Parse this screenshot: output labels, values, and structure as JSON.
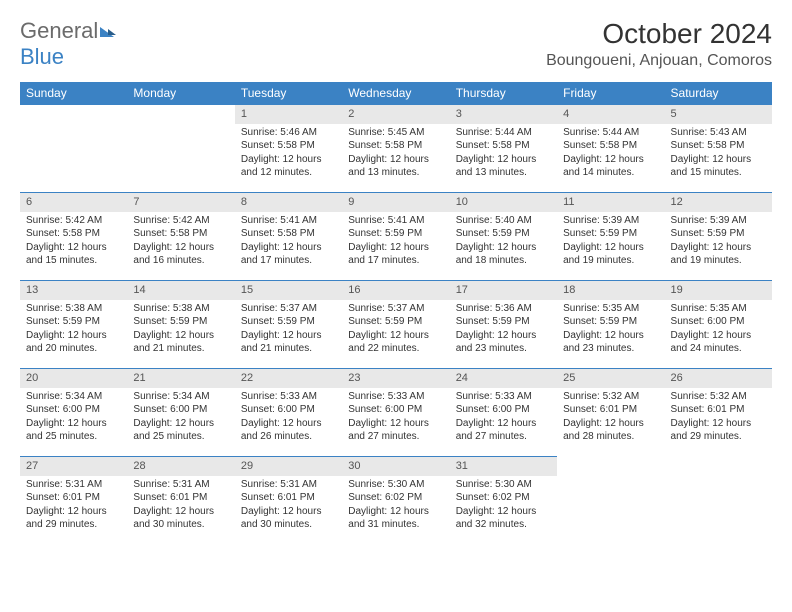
{
  "logo": {
    "general": "General",
    "blue": "Blue"
  },
  "title": "October 2024",
  "location": "Boungoueni, Anjouan, Comoros",
  "weekdays": [
    "Sunday",
    "Monday",
    "Tuesday",
    "Wednesday",
    "Thursday",
    "Friday",
    "Saturday"
  ],
  "colors": {
    "header_bg": "#3b82c4",
    "header_fg": "#ffffff",
    "daynum_bg": "#e8e8e8",
    "border": "#3b82c4",
    "logo_gray": "#6b6b6b",
    "logo_blue": "#3b82c4"
  },
  "first_weekday_index": 2,
  "days": [
    {
      "n": 1,
      "sunrise": "5:46 AM",
      "sunset": "5:58 PM",
      "daylight": "12 hours and 12 minutes."
    },
    {
      "n": 2,
      "sunrise": "5:45 AM",
      "sunset": "5:58 PM",
      "daylight": "12 hours and 13 minutes."
    },
    {
      "n": 3,
      "sunrise": "5:44 AM",
      "sunset": "5:58 PM",
      "daylight": "12 hours and 13 minutes."
    },
    {
      "n": 4,
      "sunrise": "5:44 AM",
      "sunset": "5:58 PM",
      "daylight": "12 hours and 14 minutes."
    },
    {
      "n": 5,
      "sunrise": "5:43 AM",
      "sunset": "5:58 PM",
      "daylight": "12 hours and 15 minutes."
    },
    {
      "n": 6,
      "sunrise": "5:42 AM",
      "sunset": "5:58 PM",
      "daylight": "12 hours and 15 minutes."
    },
    {
      "n": 7,
      "sunrise": "5:42 AM",
      "sunset": "5:58 PM",
      "daylight": "12 hours and 16 minutes."
    },
    {
      "n": 8,
      "sunrise": "5:41 AM",
      "sunset": "5:58 PM",
      "daylight": "12 hours and 17 minutes."
    },
    {
      "n": 9,
      "sunrise": "5:41 AM",
      "sunset": "5:59 PM",
      "daylight": "12 hours and 17 minutes."
    },
    {
      "n": 10,
      "sunrise": "5:40 AM",
      "sunset": "5:59 PM",
      "daylight": "12 hours and 18 minutes."
    },
    {
      "n": 11,
      "sunrise": "5:39 AM",
      "sunset": "5:59 PM",
      "daylight": "12 hours and 19 minutes."
    },
    {
      "n": 12,
      "sunrise": "5:39 AM",
      "sunset": "5:59 PM",
      "daylight": "12 hours and 19 minutes."
    },
    {
      "n": 13,
      "sunrise": "5:38 AM",
      "sunset": "5:59 PM",
      "daylight": "12 hours and 20 minutes."
    },
    {
      "n": 14,
      "sunrise": "5:38 AM",
      "sunset": "5:59 PM",
      "daylight": "12 hours and 21 minutes."
    },
    {
      "n": 15,
      "sunrise": "5:37 AM",
      "sunset": "5:59 PM",
      "daylight": "12 hours and 21 minutes."
    },
    {
      "n": 16,
      "sunrise": "5:37 AM",
      "sunset": "5:59 PM",
      "daylight": "12 hours and 22 minutes."
    },
    {
      "n": 17,
      "sunrise": "5:36 AM",
      "sunset": "5:59 PM",
      "daylight": "12 hours and 23 minutes."
    },
    {
      "n": 18,
      "sunrise": "5:35 AM",
      "sunset": "5:59 PM",
      "daylight": "12 hours and 23 minutes."
    },
    {
      "n": 19,
      "sunrise": "5:35 AM",
      "sunset": "6:00 PM",
      "daylight": "12 hours and 24 minutes."
    },
    {
      "n": 20,
      "sunrise": "5:34 AM",
      "sunset": "6:00 PM",
      "daylight": "12 hours and 25 minutes."
    },
    {
      "n": 21,
      "sunrise": "5:34 AM",
      "sunset": "6:00 PM",
      "daylight": "12 hours and 25 minutes."
    },
    {
      "n": 22,
      "sunrise": "5:33 AM",
      "sunset": "6:00 PM",
      "daylight": "12 hours and 26 minutes."
    },
    {
      "n": 23,
      "sunrise": "5:33 AM",
      "sunset": "6:00 PM",
      "daylight": "12 hours and 27 minutes."
    },
    {
      "n": 24,
      "sunrise": "5:33 AM",
      "sunset": "6:00 PM",
      "daylight": "12 hours and 27 minutes."
    },
    {
      "n": 25,
      "sunrise": "5:32 AM",
      "sunset": "6:01 PM",
      "daylight": "12 hours and 28 minutes."
    },
    {
      "n": 26,
      "sunrise": "5:32 AM",
      "sunset": "6:01 PM",
      "daylight": "12 hours and 29 minutes."
    },
    {
      "n": 27,
      "sunrise": "5:31 AM",
      "sunset": "6:01 PM",
      "daylight": "12 hours and 29 minutes."
    },
    {
      "n": 28,
      "sunrise": "5:31 AM",
      "sunset": "6:01 PM",
      "daylight": "12 hours and 30 minutes."
    },
    {
      "n": 29,
      "sunrise": "5:31 AM",
      "sunset": "6:01 PM",
      "daylight": "12 hours and 30 minutes."
    },
    {
      "n": 30,
      "sunrise": "5:30 AM",
      "sunset": "6:02 PM",
      "daylight": "12 hours and 31 minutes."
    },
    {
      "n": 31,
      "sunrise": "5:30 AM",
      "sunset": "6:02 PM",
      "daylight": "12 hours and 32 minutes."
    }
  ],
  "labels": {
    "sunrise": "Sunrise:",
    "sunset": "Sunset:",
    "daylight": "Daylight:"
  }
}
